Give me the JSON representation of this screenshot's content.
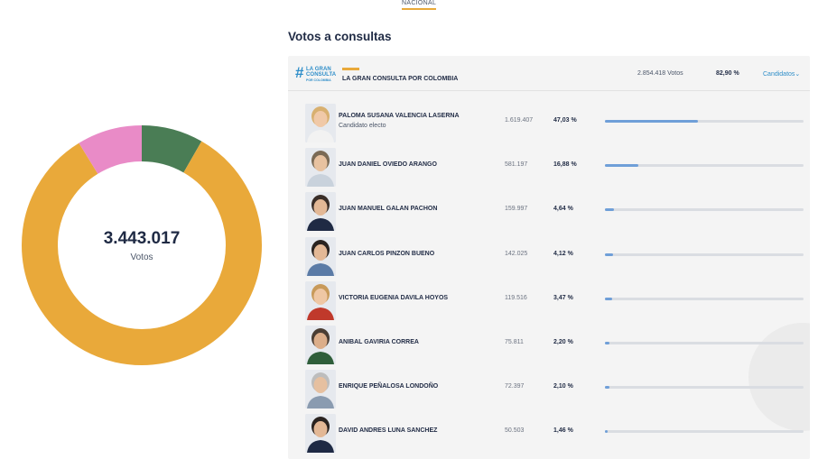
{
  "top_tab": "NACIONAL",
  "donut": {
    "total": "3.443.017",
    "label": "Votos",
    "segments": [
      {
        "fraction": 0.829,
        "color": "#e9a93a"
      },
      {
        "fraction": 0.088,
        "color": "#e98bc7"
      },
      {
        "fraction": 0.083,
        "color": "#4a7d55"
      }
    ]
  },
  "section_title": "Votos a consultas",
  "consulta": {
    "logo_hash": "#",
    "logo_line1": "LA GRAN",
    "logo_line2": "CONSULTA",
    "logo_line3": "POR COLOMBIA",
    "name": "LA GRAN CONSULTA POR COLOMBIA",
    "votes": "2.854.418 Votos",
    "pct": "82,90 %",
    "candidates_button": "Candidatos",
    "chevron_icon": "chevron-down-icon",
    "chevron_glyph": "⌄"
  },
  "candidates": [
    {
      "name": "PALOMA SUSANA VALENCIA LASERNA",
      "subtitle": "Candidato electo",
      "votes": "1.619.407",
      "pct": "47,03 %",
      "share": 47.03,
      "hair": "#d8b070",
      "skin": "#f0c9a8",
      "shirt": "#f2f2f2"
    },
    {
      "name": "JUAN DANIEL OVIEDO ARANGO",
      "subtitle": "",
      "votes": "581.197",
      "pct": "16,88 %",
      "share": 16.88,
      "hair": "#7a6a55",
      "skin": "#e8c2a0",
      "shirt": "#c9d2dc"
    },
    {
      "name": "JUAN MANUEL GALAN PACHON",
      "subtitle": "",
      "votes": "159.997",
      "pct": "4,64 %",
      "share": 4.64,
      "hair": "#3a2e28",
      "skin": "#e3b896",
      "shirt": "#1f2a44"
    },
    {
      "name": "JUAN CARLOS PINZON BUENO",
      "subtitle": "",
      "votes": "142.025",
      "pct": "4,12 %",
      "share": 4.12,
      "hair": "#2a2320",
      "skin": "#e3b896",
      "shirt": "#5b7ba6"
    },
    {
      "name": "VICTORIA EUGENIA DAVILA HOYOS",
      "subtitle": "",
      "votes": "119.516",
      "pct": "3,47 %",
      "share": 3.47,
      "hair": "#c89a5a",
      "skin": "#efc7a4",
      "shirt": "#c0392b"
    },
    {
      "name": "ANIBAL GAVIRIA CORREA",
      "subtitle": "",
      "votes": "75.811",
      "pct": "2,20 %",
      "share": 2.2,
      "hair": "#4a3d33",
      "skin": "#dcae8a",
      "shirt": "#2f5e3a"
    },
    {
      "name": "ENRIQUE PEÑALOSA LONDOÑO",
      "subtitle": "",
      "votes": "72.397",
      "pct": "2,10 %",
      "share": 2.1,
      "hair": "#bdbdbd",
      "skin": "#e6c0a0",
      "shirt": "#8a9bb0"
    },
    {
      "name": "DAVID ANDRES LUNA SANCHEZ",
      "subtitle": "",
      "votes": "50.503",
      "pct": "1,46 %",
      "share": 1.46,
      "hair": "#2a2320",
      "skin": "#e3b896",
      "shirt": "#1f2a44"
    }
  ]
}
